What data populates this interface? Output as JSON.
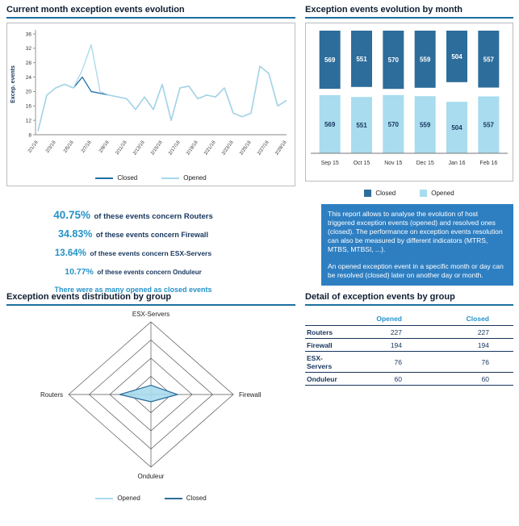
{
  "chart_data": [
    {
      "id": "line-chart",
      "type": "line",
      "title": "Current month exception events evolution",
      "ylabel": "Excep. events",
      "ylim": [
        8,
        36
      ],
      "yticks": [
        8,
        12,
        16,
        20,
        24,
        28,
        32,
        36
      ],
      "x": [
        "2/1/16",
        "2/2/16",
        "2/3/16",
        "2/4/16",
        "2/5/16",
        "2/6/16",
        "2/7/16",
        "2/8/16",
        "2/9/16",
        "2/10/16",
        "2/11/16",
        "2/12/16",
        "2/13/16",
        "2/14/16",
        "2/15/16",
        "2/16/16",
        "2/17/16",
        "2/18/16",
        "2/19/16",
        "2/20/16",
        "2/21/16",
        "2/22/16",
        "2/23/16",
        "2/24/16",
        "2/25/16",
        "2/26/16",
        "2/27/16",
        "2/28/16",
        "2/29/16"
      ],
      "series": [
        {
          "name": "Closed",
          "color": "#1f6fa8",
          "values": [
            9,
            19,
            21,
            22,
            21,
            24,
            20,
            19.5,
            19,
            18.5,
            18,
            15,
            18.5,
            15,
            22,
            12,
            21,
            21.5,
            18,
            19,
            18.5,
            21,
            14,
            13,
            14,
            27,
            25,
            16,
            17.5
          ]
        },
        {
          "name": "Opened",
          "color": "#a7d9ea",
          "values": [
            9,
            19,
            21,
            22,
            21,
            26,
            33,
            20,
            19,
            18.5,
            18,
            15,
            18.5,
            15,
            22,
            12,
            21,
            21.5,
            18,
            19,
            18.5,
            21,
            14,
            13,
            14,
            27,
            25,
            16,
            17.5
          ]
        }
      ],
      "legend_position": "bottom",
      "grid": false
    },
    {
      "id": "bar-chart",
      "type": "bar",
      "title": "Exception events evolution by month",
      "categories": [
        "Sep 15",
        "Oct 15",
        "Nov 15",
        "Dec 15",
        "Jan 16",
        "Feb 16"
      ],
      "ymax": 600,
      "series": [
        {
          "name": "Closed",
          "color": "#2d6d9b",
          "values": [
            569,
            551,
            570,
            559,
            504,
            557
          ]
        },
        {
          "name": "Opened",
          "color": "#a8dcee",
          "values": [
            569,
            551,
            570,
            559,
            504,
            557
          ]
        }
      ],
      "legend_position": "bottom",
      "grid": false
    },
    {
      "id": "radar-chart",
      "type": "radar",
      "title": "Exception events distribution by group",
      "axes": [
        "ESX-Servers",
        "Firewall",
        "Onduleur",
        "Routers"
      ],
      "max": 600,
      "rings": [
        0.25,
        0.5,
        0.75,
        1
      ],
      "series": [
        {
          "name": "Opened",
          "color": "#a8dcee",
          "outline": "#6fa8c9",
          "values": [
            76,
            194,
            60,
            227
          ]
        },
        {
          "name": "Closed",
          "color": "#2d6d9b",
          "values": [
            76,
            194,
            60,
            227
          ]
        }
      ],
      "legend_position": "bottom"
    }
  ],
  "stats": [
    {
      "pct": "40.75%",
      "text": "of these events concern Routers"
    },
    {
      "pct": "34.83%",
      "text": "of these events concern Firewall"
    },
    {
      "pct": "13.64%",
      "text": "of these events concern ESX-Servers"
    },
    {
      "pct": "10.77%",
      "text": "of these events concern Onduleur"
    }
  ],
  "summary_line": "There were as many opened as closed events",
  "note": {
    "p1": "This report allows to analyse the evolution of host triggered exception events (opened) and resolved ones (closed). The performance on exception events resolution can also be measured by different indicators (MTRS, MTBS, MTBSI, ...).",
    "p2": "An opened exception event in a specific month or day can be resolved (closed) later on another day or month."
  },
  "table": {
    "title": "Detail of exception events by group",
    "columns": {
      "opened": "Opened",
      "closed": "Closed"
    },
    "rows": [
      {
        "label": "Routers",
        "opened": "227",
        "closed": "227"
      },
      {
        "label": "Firewall",
        "opened": "194",
        "closed": "194"
      },
      {
        "label": "ESX-Servers",
        "opened": "76",
        "closed": "76"
      },
      {
        "label": "Onduleur",
        "opened": "60",
        "closed": "60"
      }
    ]
  },
  "colors": {
    "accent": "#2592c8",
    "dark_navy": "#17365d",
    "bar_dark": "#2d6d9b",
    "bar_light": "#a8dcee",
    "note_bg": "#2e7fc2",
    "title_underline": "#1d6fa0"
  }
}
